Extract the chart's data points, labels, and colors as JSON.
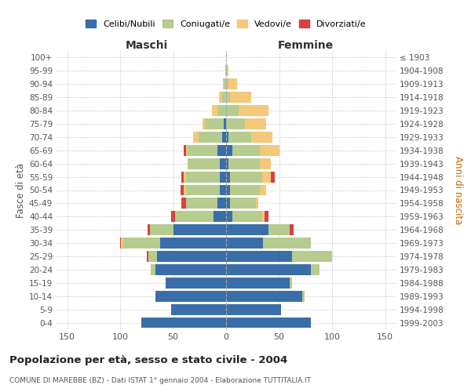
{
  "age_groups": [
    "0-4",
    "5-9",
    "10-14",
    "15-19",
    "20-24",
    "25-29",
    "30-34",
    "35-39",
    "40-44",
    "45-49",
    "50-54",
    "55-59",
    "60-64",
    "65-69",
    "70-74",
    "75-79",
    "80-84",
    "85-89",
    "90-94",
    "95-99",
    "100+"
  ],
  "birth_years": [
    "1999-2003",
    "1994-1998",
    "1989-1993",
    "1984-1988",
    "1979-1983",
    "1974-1978",
    "1969-1973",
    "1964-1968",
    "1959-1963",
    "1954-1958",
    "1949-1953",
    "1944-1948",
    "1939-1943",
    "1934-1938",
    "1929-1933",
    "1924-1928",
    "1919-1923",
    "1914-1918",
    "1909-1913",
    "1904-1908",
    "≤ 1903"
  ],
  "males": {
    "celibi": [
      80,
      52,
      67,
      57,
      67,
      65,
      62,
      50,
      12,
      8,
      6,
      6,
      6,
      8,
      4,
      2,
      0,
      0,
      0,
      0,
      0
    ],
    "coniugati": [
      0,
      0,
      0,
      0,
      4,
      8,
      35,
      22,
      36,
      30,
      32,
      32,
      30,
      28,
      22,
      18,
      8,
      4,
      2,
      1,
      0
    ],
    "vedovi": [
      0,
      0,
      0,
      0,
      0,
      0,
      2,
      0,
      0,
      0,
      2,
      2,
      0,
      2,
      5,
      2,
      5,
      3,
      1,
      0,
      0
    ],
    "divorziati": [
      0,
      0,
      0,
      0,
      0,
      2,
      1,
      2,
      4,
      4,
      3,
      2,
      0,
      2,
      0,
      0,
      0,
      0,
      0,
      0,
      0
    ]
  },
  "females": {
    "nubili": [
      80,
      52,
      72,
      60,
      80,
      62,
      35,
      40,
      6,
      4,
      4,
      4,
      2,
      6,
      2,
      0,
      0,
      0,
      0,
      0,
      0
    ],
    "coniugate": [
      0,
      0,
      2,
      2,
      8,
      38,
      45,
      20,
      28,
      24,
      28,
      30,
      30,
      26,
      22,
      18,
      12,
      4,
      2,
      1,
      0
    ],
    "vedove": [
      0,
      0,
      0,
      0,
      0,
      0,
      0,
      0,
      2,
      2,
      6,
      8,
      10,
      18,
      20,
      20,
      28,
      20,
      8,
      1,
      0
    ],
    "divorziate": [
      0,
      0,
      0,
      0,
      0,
      0,
      0,
      4,
      4,
      0,
      0,
      4,
      0,
      0,
      0,
      0,
      0,
      0,
      0,
      0,
      0
    ]
  },
  "colors": {
    "celibi": "#3a6ea8",
    "coniugati": "#b5cc8e",
    "vedovi": "#f5c87a",
    "divorziati": "#d94040"
  },
  "xlim": 160,
  "title": "Popolazione per età, sesso e stato civile - 2004",
  "subtitle": "COMUNE DI MAREBBE (BZ) - Dati ISTAT 1° gennaio 2004 - Elaborazione TUTTITALIA.IT",
  "xlabel_left": "Maschi",
  "xlabel_right": "Femmine",
  "ylabel_left": "Fasce di età",
  "ylabel_right": "Anni di nascita",
  "legend_labels": [
    "Celibi/Nubili",
    "Coniugati/e",
    "Vedovi/e",
    "Divorziati/e"
  ],
  "background_color": "#ffffff",
  "grid_color": "#cccccc"
}
